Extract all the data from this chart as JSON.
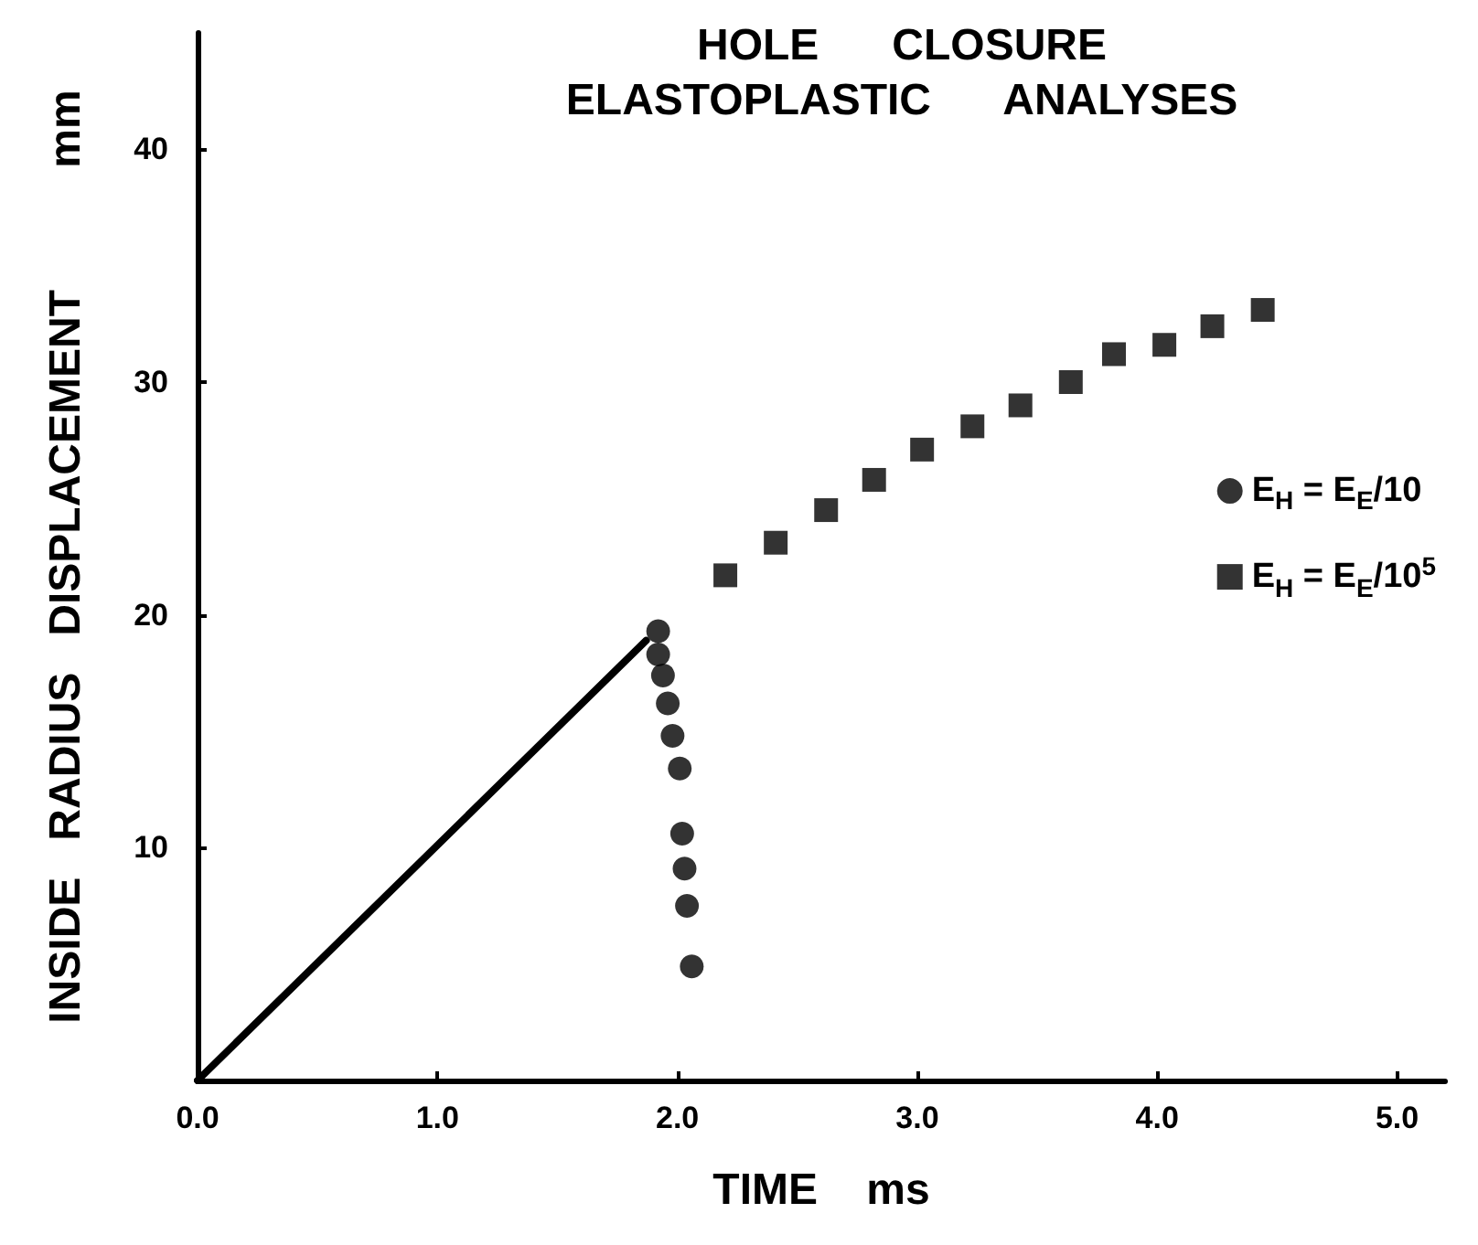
{
  "chart_data": {
    "type": "scatter",
    "title": "HOLE      CLOSURE",
    "subtitle": "ELASTOPLASTIC      ANALYSES",
    "xlabel": "TIME    ms",
    "ylabel": "INSIDE   RADIUS   DISPLACEMENT          mm",
    "xlim": [
      0,
      5.2
    ],
    "xticks": [
      {
        "value": 0,
        "label": "0.0"
      },
      {
        "value": 1,
        "label": "1.0"
      },
      {
        "value": 2,
        "label": "2.0"
      },
      {
        "value": 3,
        "label": "3.0"
      },
      {
        "value": 4,
        "label": "4.0"
      },
      {
        "value": 5,
        "label": "5.0"
      }
    ],
    "ylim": [
      0,
      45
    ],
    "yticks": [
      10,
      20,
      30,
      40
    ],
    "grid": false,
    "legend": "right",
    "series": [
      {
        "type": "line",
        "color": "#000000",
        "marker": "none",
        "x": [
          0,
          1.87
        ],
        "values": [
          0,
          18.9
        ]
      },
      {
        "name": "E$_{H}$ = E$_{E}$/10",
        "color": "#000000",
        "marker": "circle",
        "x": [
          1.92,
          1.92,
          1.94,
          1.96,
          1.98,
          2.01,
          2.02,
          2.03,
          2.04,
          2.06
        ],
        "values": [
          19.3,
          18.3,
          17.4,
          16.2,
          14.8,
          13.4,
          10.6,
          9.1,
          7.5,
          4.9
        ]
      },
      {
        "name": "E$_{H}$ = E$_{E}$/10$^{5}$",
        "color": "#000000",
        "marker": "square",
        "x": [
          2.2,
          2.41,
          2.62,
          2.82,
          3.02,
          3.23,
          3.43,
          3.64,
          3.82,
          4.03,
          4.23,
          4.44
        ],
        "values": [
          21.7,
          23.1,
          24.5,
          25.8,
          27.1,
          28.1,
          29.0,
          30.0,
          31.2,
          31.6,
          32.4,
          33.1
        ]
      }
    ]
  }
}
